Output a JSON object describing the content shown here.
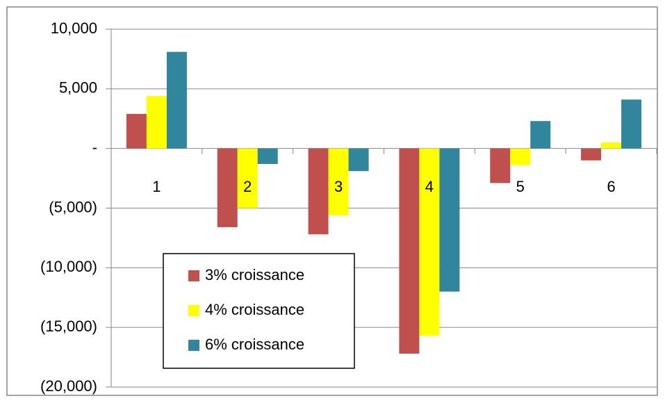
{
  "chart_data": {
    "type": "bar",
    "categories": [
      "1",
      "2",
      "3",
      "4",
      "5",
      "6"
    ],
    "series": [
      {
        "name": "3% croissance",
        "color": "#c0504d",
        "values": [
          2900,
          -6600,
          -7200,
          -17200,
          -2900,
          -1000
        ]
      },
      {
        "name": "4% croissance",
        "color": "#ffff00",
        "values": [
          4400,
          -5000,
          -5600,
          -15700,
          -1400,
          500
        ]
      },
      {
        "name": "6% croissance",
        "color": "#31859c",
        "values": [
          8100,
          -1300,
          -1900,
          -12000,
          2300,
          4100
        ]
      }
    ],
    "ylim": [
      -20000,
      10000
    ],
    "yticks": [
      {
        "value": -20000,
        "label": "(20,000)"
      },
      {
        "value": -15000,
        "label": "(15,000)"
      },
      {
        "value": -10000,
        "label": "(10,000)"
      },
      {
        "value": -5000,
        "label": "(5,000)"
      },
      {
        "value": 0,
        "label": "-"
      },
      {
        "value": 5000,
        "label": "5,000"
      },
      {
        "value": 10000,
        "label": "10,000"
      }
    ],
    "grid": true,
    "legend": "lower-left"
  }
}
